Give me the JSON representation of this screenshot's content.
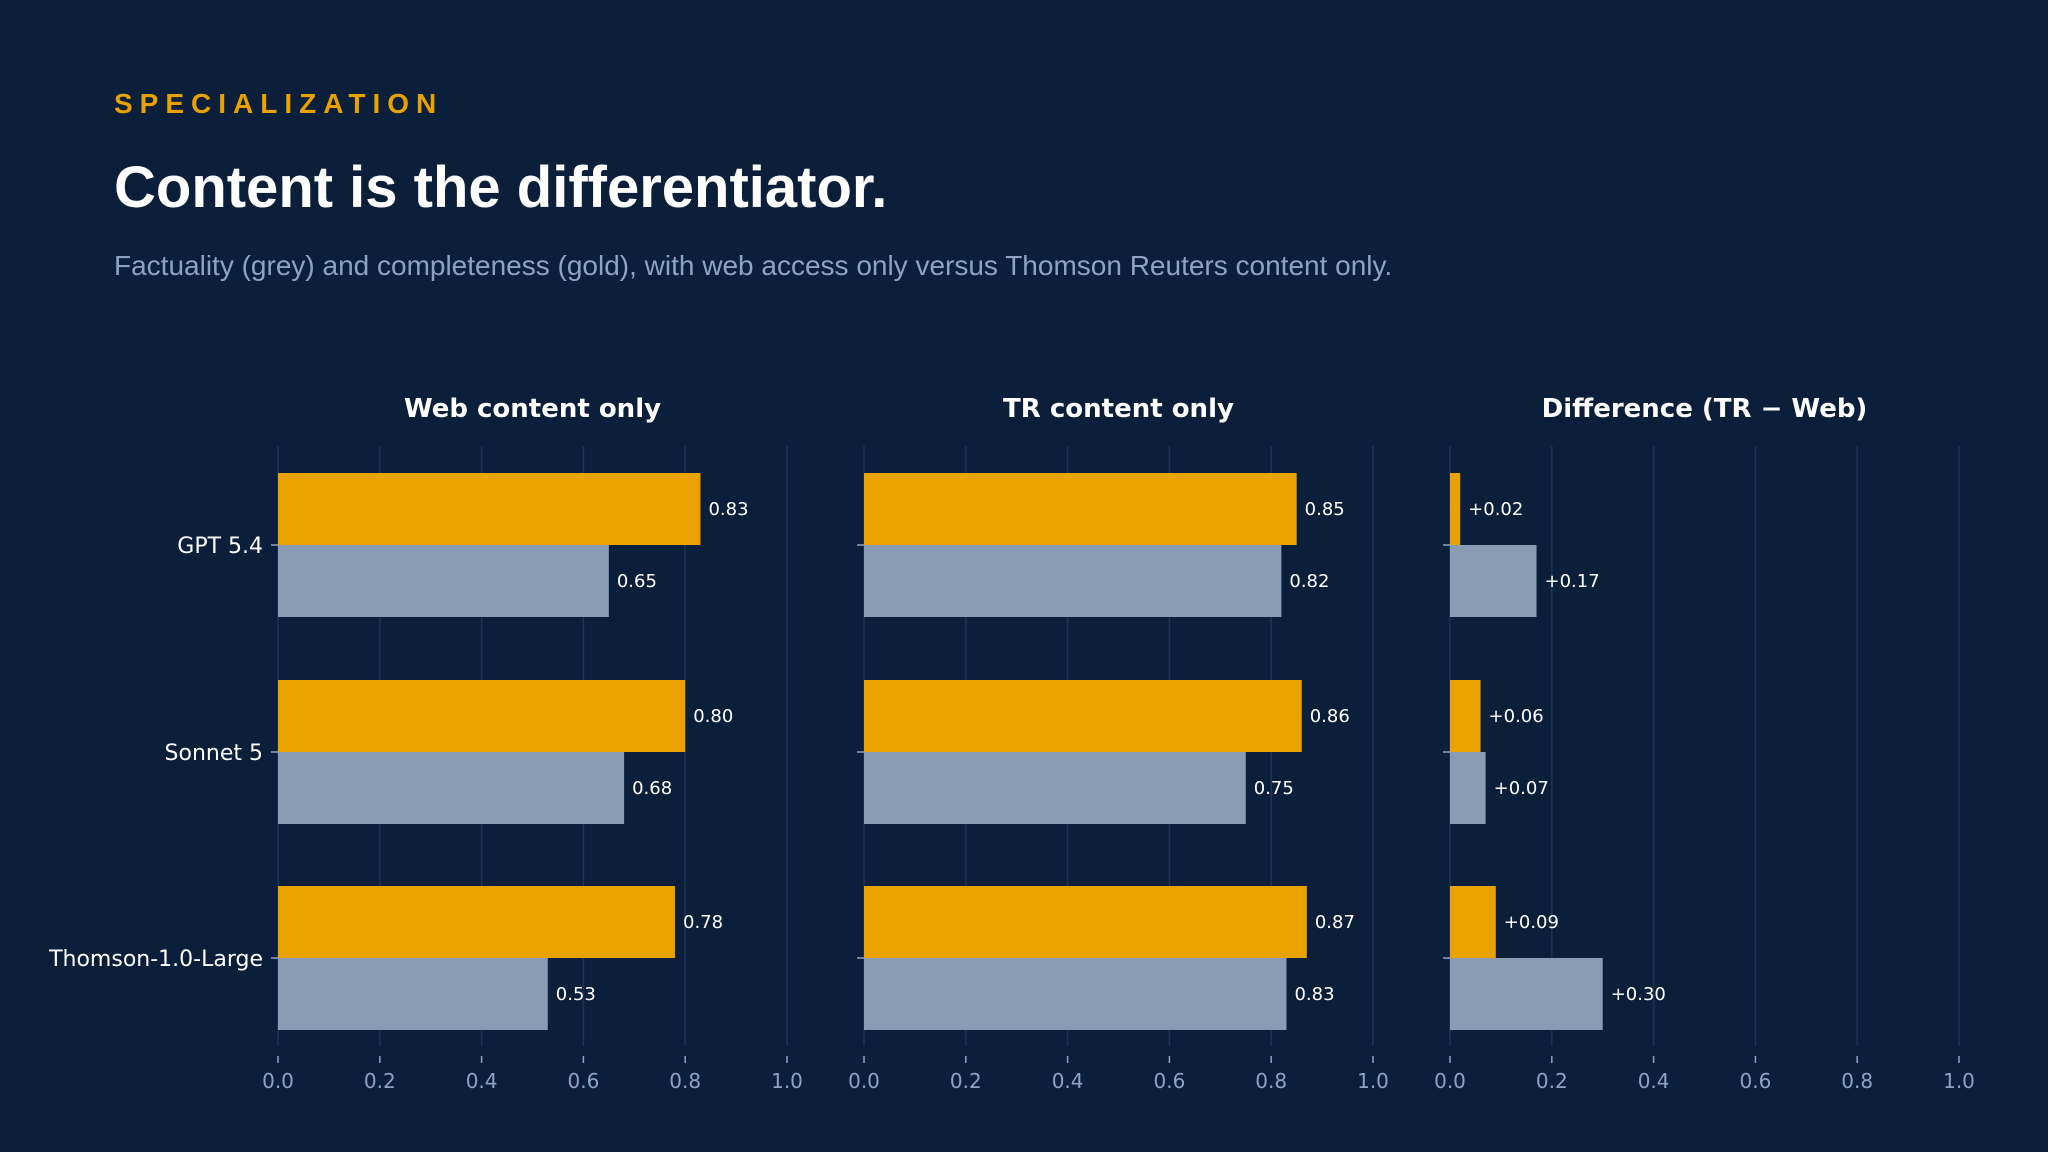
{
  "header": {
    "eyebrow": "SPECIALIZATION",
    "title": "Content is the differentiator.",
    "subtitle": "Factuality (grey) and completeness (gold), with web access only versus Thomson Reuters content only."
  },
  "colors": {
    "background": "#0b1f3a",
    "gold": "#eaa200",
    "grey": "#8a9bb4",
    "accent": "#e8a200",
    "subtitle": "#8ea3c0"
  },
  "chart_data": [
    {
      "type": "bar",
      "orientation": "horizontal",
      "title": "Web content only",
      "categories": [
        "GPT 5.4",
        "Sonnet 5",
        "Thomson-1.0-Large"
      ],
      "xlim": [
        0,
        1.0
      ],
      "xticks": [
        "0.0",
        "0.2",
        "0.4",
        "0.6",
        "0.8",
        "1.0"
      ],
      "grid": true,
      "series": [
        {
          "color": "#eaa200",
          "values": [
            0.83,
            0.8,
            0.78
          ],
          "labels": [
            "0.83",
            "0.80",
            "0.78"
          ]
        },
        {
          "color": "#8a9bb4",
          "values": [
            0.65,
            0.68,
            0.53
          ],
          "labels": [
            "0.65",
            "0.68",
            "0.53"
          ]
        }
      ]
    },
    {
      "type": "bar",
      "orientation": "horizontal",
      "title": "TR content only",
      "categories": [
        "GPT 5.4",
        "Sonnet 5",
        "Thomson-1.0-Large"
      ],
      "xlim": [
        0,
        1.0
      ],
      "xticks": [
        "0.0",
        "0.2",
        "0.4",
        "0.6",
        "0.8",
        "1.0"
      ],
      "grid": true,
      "series": [
        {
          "color": "#eaa200",
          "values": [
            0.85,
            0.86,
            0.87
          ],
          "labels": [
            "0.85",
            "0.86",
            "0.87"
          ]
        },
        {
          "color": "#8a9bb4",
          "values": [
            0.82,
            0.75,
            0.83
          ],
          "labels": [
            "0.82",
            "0.75",
            "0.83"
          ]
        }
      ]
    },
    {
      "type": "bar",
      "orientation": "horizontal",
      "title": "Difference (TR − Web)",
      "categories": [
        "GPT 5.4",
        "Sonnet 5",
        "Thomson-1.0-Large"
      ],
      "xlim": [
        0,
        1.0
      ],
      "xticks": [
        "0.0",
        "0.2",
        "0.4",
        "0.6",
        "0.8",
        "1.0"
      ],
      "grid": true,
      "series": [
        {
          "color": "#eaa200",
          "values": [
            0.02,
            0.06,
            0.09
          ],
          "labels": [
            "+0.02",
            "+0.06",
            "+0.09"
          ]
        },
        {
          "color": "#8a9bb4",
          "values": [
            0.17,
            0.07,
            0.3
          ],
          "labels": [
            "+0.17",
            "+0.07",
            "+0.30"
          ]
        }
      ]
    }
  ]
}
